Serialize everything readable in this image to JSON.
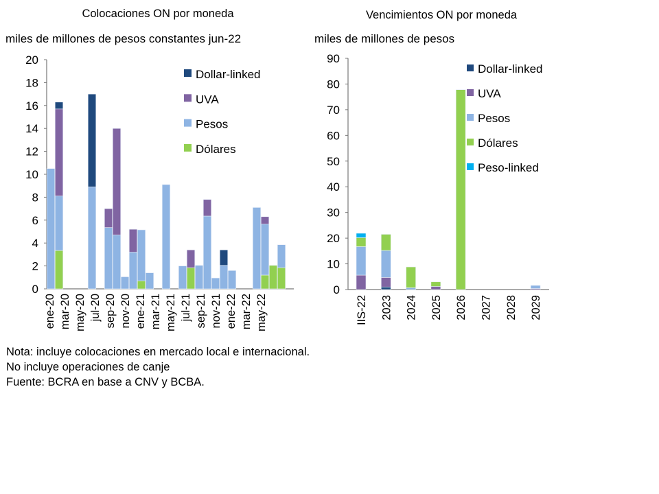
{
  "colors": {
    "Dollar-linked": "#1f497d",
    "UVA": "#8064a2",
    "Pesos": "#8eb4e3",
    "Dólares": "#92d050",
    "Peso-linked": "#00b0f0"
  },
  "chart_data": [
    {
      "type": "bar",
      "stacked": true,
      "title": "Colocaciones ON por moneda",
      "ylabel": "miles de millones de pesos constantes jun-22",
      "ylim": [
        0,
        20
      ],
      "yticks": [
        0,
        2,
        4,
        6,
        8,
        10,
        12,
        14,
        16,
        18,
        20
      ],
      "tick_labels": [
        "ene-20",
        "mar-20",
        "may-20",
        "jul-20",
        "sep-20",
        "nov-20",
        "ene-21",
        "mar-21",
        "may-21",
        "jul-21",
        "sep-21",
        "nov-21",
        "ene-22",
        "mar-22",
        "may-22"
      ],
      "legend": "top-right",
      "grid": false,
      "series": [
        {
          "name": "Dólares",
          "values": [
            0,
            3.35,
            0,
            0,
            0,
            0,
            0,
            0,
            0,
            0,
            0,
            0.7,
            0,
            0,
            0,
            0,
            0,
            1.85,
            0,
            0,
            0,
            0,
            0,
            0,
            0,
            0,
            1.2,
            2.05,
            1.85,
            0
          ]
        },
        {
          "name": "Pesos",
          "values": [
            10.5,
            4.75,
            0,
            0,
            0,
            8.9,
            0,
            5.35,
            4.7,
            1.05,
            3.2,
            4.45,
            1.4,
            0,
            9.1,
            0,
            2.0,
            0,
            2.05,
            6.35,
            0.95,
            2.05,
            1.6,
            0,
            0,
            7.1,
            4.45,
            0,
            2.0,
            0
          ]
        },
        {
          "name": "UVA",
          "values": [
            0,
            7.6,
            0,
            0,
            0,
            0,
            0,
            1.65,
            9.3,
            0,
            2.0,
            0,
            0,
            0,
            0,
            0,
            0,
            1.55,
            0,
            1.45,
            0,
            0,
            0,
            0,
            0,
            0,
            0.65,
            0,
            0,
            0
          ]
        },
        {
          "name": "Dollar-linked",
          "values": [
            0,
            0.6,
            0,
            0,
            0,
            8.1,
            0,
            0,
            0,
            0,
            0,
            0,
            0,
            0,
            0,
            0,
            0,
            0,
            0,
            0,
            0,
            1.35,
            0,
            0,
            0,
            0,
            0,
            0,
            0,
            0
          ]
        }
      ]
    },
    {
      "type": "bar",
      "stacked": true,
      "title": "Vencimientos ON por moneda",
      "ylabel": "miles de millones de pesos",
      "ylim": [
        0,
        90
      ],
      "yticks": [
        0,
        10,
        20,
        30,
        40,
        50,
        60,
        70,
        80,
        90
      ],
      "categories": [
        "IIS-22",
        "2023",
        "2024",
        "2025",
        "2026",
        "2027",
        "2028",
        "2029"
      ],
      "legend": "top-right",
      "grid": false,
      "series": [
        {
          "name": "Dollar-linked",
          "values": [
            0,
            1.0,
            0,
            0,
            0,
            0,
            0,
            0
          ]
        },
        {
          "name": "UVA",
          "values": [
            5.6,
            3.7,
            0,
            1.2,
            0,
            0,
            0,
            0.4
          ]
        },
        {
          "name": "Pesos",
          "values": [
            11.1,
            10.5,
            0.7,
            0,
            0,
            0,
            0,
            1.2
          ]
        },
        {
          "name": "Dólares",
          "values": [
            3.5,
            6.3,
            8.1,
            1.8,
            77.8,
            0,
            0,
            0
          ]
        },
        {
          "name": "Peso-linked",
          "values": [
            1.7,
            0,
            0,
            0,
            0,
            0,
            0,
            0
          ]
        }
      ]
    }
  ],
  "legend_left": [
    "Dollar-linked",
    "UVA",
    "Pesos",
    "Dólares"
  ],
  "legend_right": [
    "Dollar-linked",
    "UVA",
    "Pesos",
    "Dólares",
    "Peso-linked"
  ],
  "notes": [
    "Nota: incluye colocaciones en mercado local e internacional.",
    "No incluye operaciones de canje",
    "Fuente: BCRA en base a CNV y BCBA."
  ]
}
